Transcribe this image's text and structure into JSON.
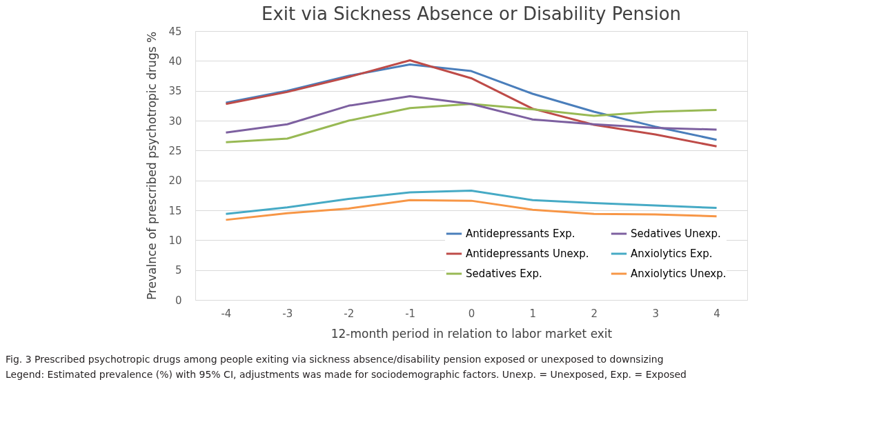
{
  "chart_data": {
    "type": "line",
    "title": "Exit via Sickness Absence or Disability Pension",
    "xlabel": "12-month period in relation to labor market exit",
    "ylabel": "Prevalnce of prescribed psychotropic drugs %",
    "categories": [
      "-4",
      "-3",
      "-2",
      "-1",
      "0",
      "1",
      "2",
      "3",
      "4"
    ],
    "series": [
      {
        "name": "Antidepressants  Exp.",
        "color": "#4a7ebb",
        "values": [
          33.0,
          35.0,
          37.5,
          39.4,
          38.3,
          34.5,
          31.5,
          29.0,
          26.8
        ]
      },
      {
        "name": "Antidepressants Unexp.",
        "color": "#be4b48",
        "values": [
          32.8,
          34.8,
          37.3,
          40.1,
          37.1,
          32.0,
          29.3,
          27.7,
          25.7
        ]
      },
      {
        "name": "Sedatives Exp.",
        "color": "#98b954",
        "values": [
          26.4,
          27.0,
          30.0,
          32.1,
          32.8,
          31.9,
          30.8,
          31.5,
          31.8
        ]
      },
      {
        "name": "Sedatives Unexp.",
        "color": "#7d60a0",
        "values": [
          28.0,
          29.4,
          32.5,
          34.1,
          32.8,
          30.2,
          29.4,
          28.8,
          28.5
        ]
      },
      {
        "name": "Anxiolytics Exp.",
        "color": "#46aac5",
        "values": [
          14.4,
          15.5,
          16.9,
          18.0,
          18.3,
          16.7,
          16.2,
          15.8,
          15.4
        ]
      },
      {
        "name": "Anxiolytics Unexp.",
        "color": "#f79646",
        "values": [
          13.4,
          14.5,
          15.3,
          16.7,
          16.6,
          15.1,
          14.4,
          14.3,
          14.0
        ]
      }
    ],
    "ylim": [
      0,
      45
    ],
    "yticks": [
      0,
      5,
      10,
      15,
      20,
      25,
      30,
      35,
      40,
      45
    ],
    "grid": "y",
    "legend": "bottom right",
    "marker": "none",
    "line_style": "solid",
    "annotations": [
      "Fig. 3 Prescribed psychotropic drugs among people exiting via sickness absence/disability pension exposed or unexposed to downsizing",
      "Legend: Estimated prevalence (%) with 95% CI, adjustments was made for sociodemographic factors. Unexp. = Unexposed, Exp. = Exposed"
    ]
  }
}
